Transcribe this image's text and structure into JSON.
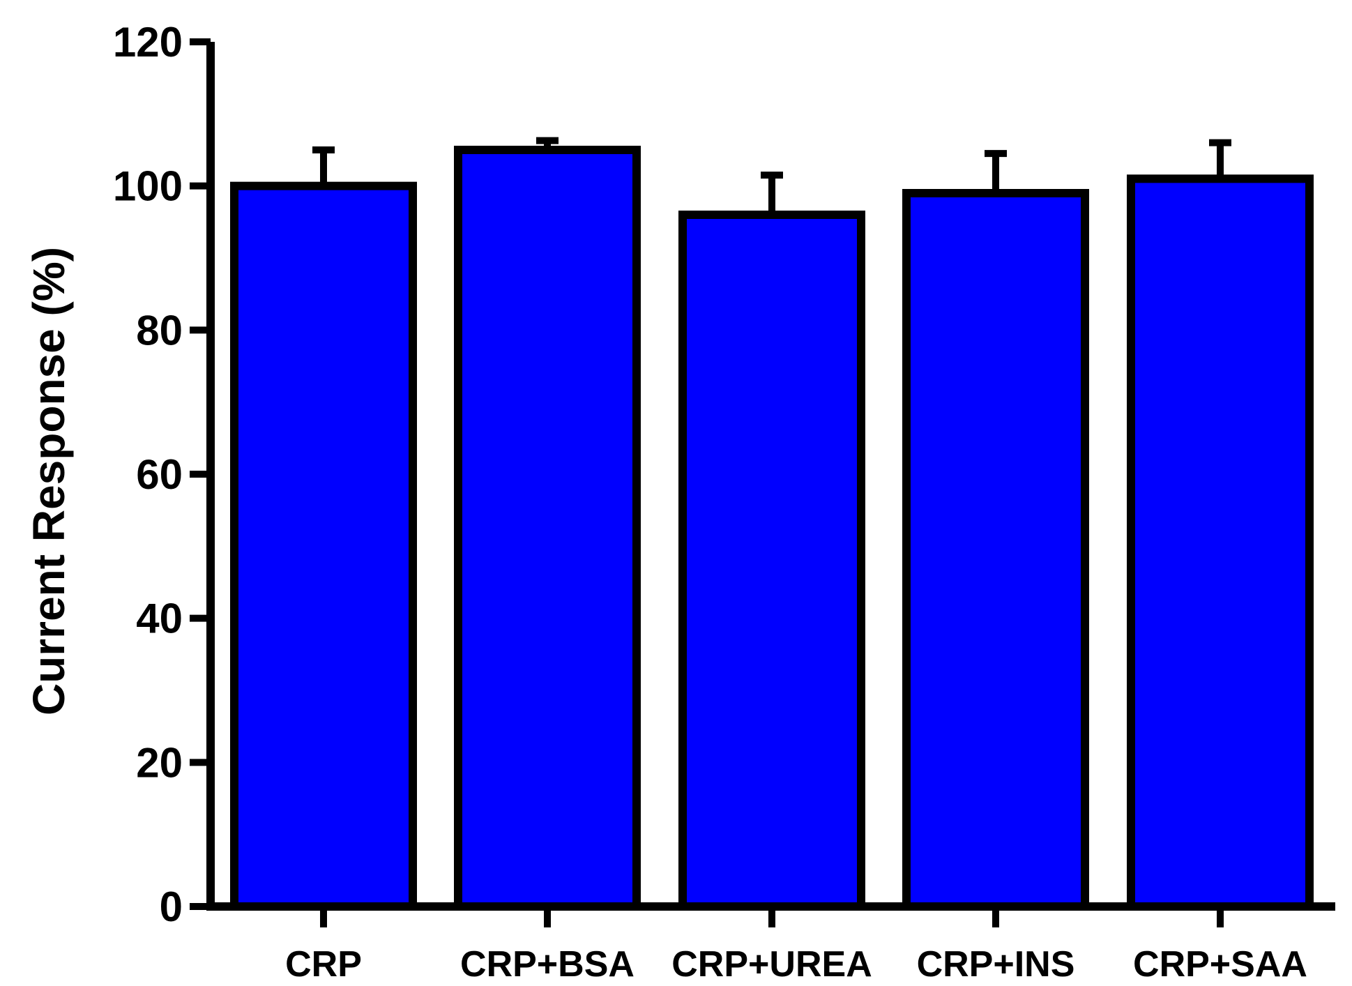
{
  "chart_data": {
    "type": "bar",
    "title": "",
    "xlabel": "",
    "ylabel": "Current Response (%)",
    "ylim": [
      0,
      120
    ],
    "yticks": [
      0,
      20,
      40,
      60,
      80,
      100,
      120
    ],
    "grid": false,
    "legend": "none",
    "categories": [
      "CRP",
      "CRP+BSA",
      "CRP+UREA",
      "CRP+INS",
      "CRP+SAA"
    ],
    "series": [
      {
        "values": [
          100,
          105,
          96,
          99,
          101
        ],
        "errors": [
          5,
          1.3,
          5.5,
          5.5,
          5
        ],
        "color": "#0000ff",
        "edge_color": "#000000"
      }
    ]
  }
}
